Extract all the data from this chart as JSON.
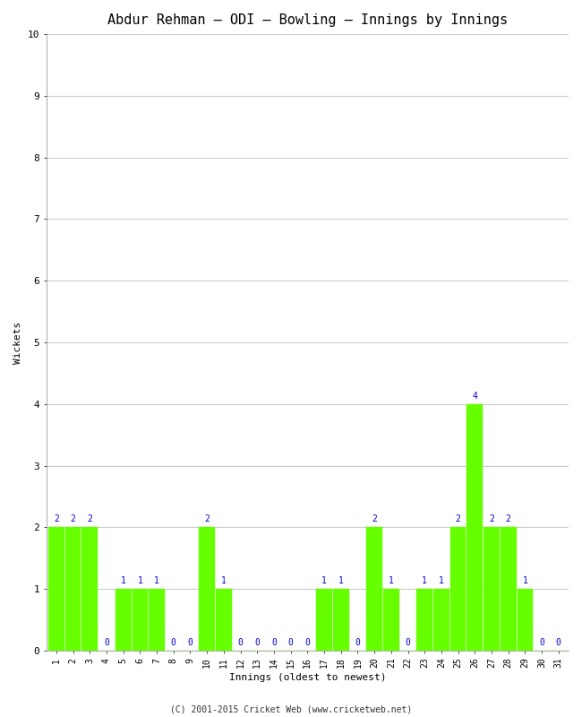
{
  "title": "Abdur Rehman – ODI – Bowling – Innings by Innings",
  "xlabel": "Innings (oldest to newest)",
  "ylabel": "Wickets",
  "categories": [
    1,
    2,
    3,
    4,
    5,
    6,
    7,
    8,
    9,
    10,
    11,
    12,
    13,
    14,
    15,
    16,
    17,
    18,
    19,
    20,
    21,
    22,
    23,
    24,
    25,
    26,
    27,
    28,
    29,
    30,
    31
  ],
  "values": [
    2,
    2,
    2,
    0,
    1,
    1,
    1,
    0,
    0,
    2,
    1,
    0,
    0,
    0,
    0,
    0,
    1,
    1,
    0,
    2,
    1,
    0,
    1,
    1,
    2,
    4,
    2,
    2,
    1,
    0,
    0
  ],
  "bar_color": "#66ff00",
  "bar_edge_color": "#66ff00",
  "label_color": "#0000cc",
  "ylim": [
    0,
    10
  ],
  "yticks": [
    0,
    1,
    2,
    3,
    4,
    5,
    6,
    7,
    8,
    9,
    10
  ],
  "background_color": "#ffffff",
  "grid_color": "#cccccc",
  "footer": "(C) 2001-2015 Cricket Web (www.cricketweb.net)",
  "title_fontsize": 11,
  "label_fontsize": 8,
  "tick_fontsize": 7,
  "value_label_fontsize": 7,
  "footer_fontsize": 7
}
